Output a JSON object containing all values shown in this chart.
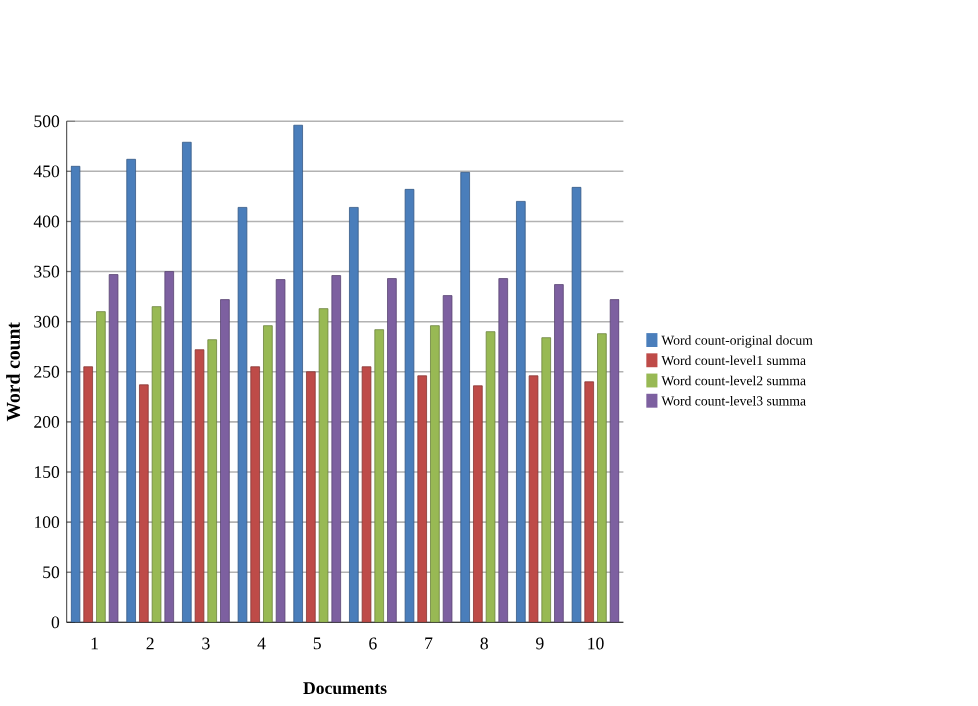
{
  "chart_data": {
    "type": "bar",
    "xlabel": "Documents",
    "ylabel": "Word count",
    "categories": [
      "1",
      "2",
      "3",
      "4",
      "5",
      "6",
      "7",
      "8",
      "9",
      "10"
    ],
    "series": [
      {
        "name": "Word count-original docum",
        "color": "#4a7ebb",
        "values": [
          455,
          462,
          479,
          414,
          496,
          414,
          432,
          449,
          420,
          434
        ]
      },
      {
        "name": "Word count-level1 summa",
        "color": "#be4b48",
        "values": [
          255,
          237,
          272,
          255,
          250,
          255,
          246,
          236,
          246,
          240
        ]
      },
      {
        "name": "Word count-level2 summa",
        "color": "#98b954",
        "values": [
          310,
          315,
          282,
          296,
          313,
          292,
          296,
          290,
          284,
          288
        ]
      },
      {
        "name": "Word count-level3 summa",
        "color": "#7d60a0",
        "values": [
          347,
          350,
          322,
          342,
          346,
          343,
          326,
          343,
          337,
          322
        ]
      }
    ],
    "ylim": [
      0,
      500
    ],
    "yticks": [
      0,
      50,
      100,
      150,
      200,
      250,
      300,
      350,
      400,
      450,
      500
    ],
    "grid": "y",
    "legend": "right"
  }
}
